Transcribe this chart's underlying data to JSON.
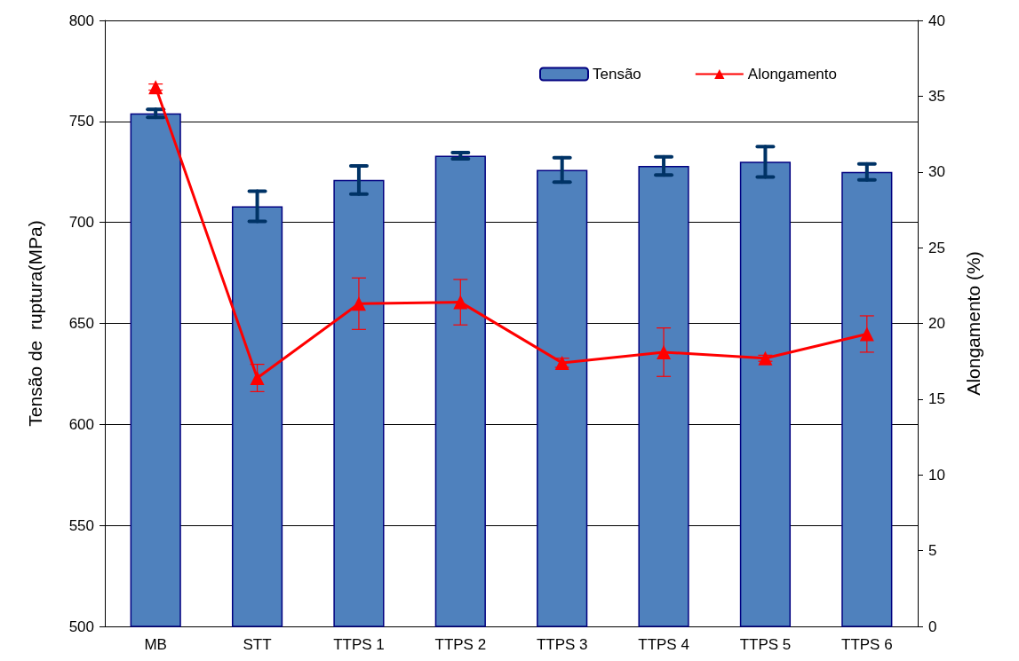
{
  "chart_data": {
    "type": "bar",
    "ylabel": "Tensão de  ruptura(MPa)",
    "y2label": "Alongamento (%)",
    "categories": [
      "MB",
      "STT",
      "TTPS 1",
      "TTPS 2",
      "TTPS 3",
      "TTPS 4",
      "TTPS 5",
      "TTPS 6"
    ],
    "series": [
      {
        "name": "Tensão",
        "color": "#4f81bd",
        "values": [
          754,
          708,
          721,
          733,
          726,
          728,
          730,
          725
        ],
        "errors": [
          2,
          7.5,
          7,
          1.5,
          6,
          4.5,
          7.5,
          4
        ]
      },
      {
        "name": "Alongamento",
        "type": "line",
        "axis": "y2",
        "color": "#ff0000",
        "marker": "triangle",
        "values": [
          35.6,
          16.4,
          21.3,
          21.4,
          17.4,
          18.1,
          17.7,
          19.3
        ],
        "errors": [
          0.2,
          0.9,
          1.7,
          1.5,
          0.3,
          1.6,
          0.2,
          1.2
        ]
      }
    ],
    "ylim": [
      500,
      800
    ],
    "yticks": [
      500,
      550,
      600,
      650,
      700,
      750,
      800
    ],
    "y2lim": [
      0,
      40
    ],
    "y2ticks": [
      0,
      5,
      10,
      15,
      20,
      25,
      30,
      35,
      40
    ],
    "grid": "y",
    "legend": "top right"
  }
}
